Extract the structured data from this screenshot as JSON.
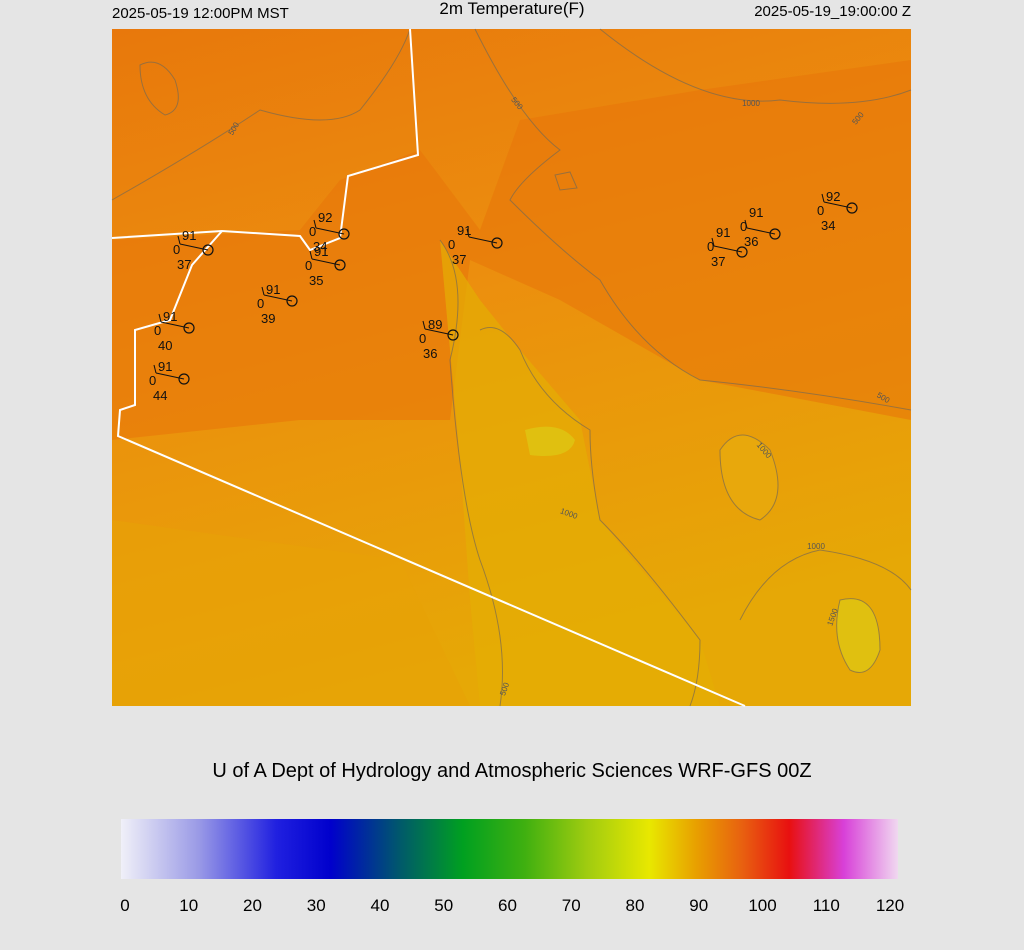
{
  "header": {
    "left": "2025-05-19 12:00PM MST",
    "title": "2m Temperature(F)",
    "right": "2025-05-19_19:00:00 Z"
  },
  "map": {
    "stations": [
      {
        "temp": 91,
        "cloud": 0,
        "dewpoint": 37
      },
      {
        "temp": 92,
        "cloud": 0,
        "dewpoint": 34
      },
      {
        "temp": 91,
        "cloud": 0,
        "dewpoint": 35
      },
      {
        "temp": 91,
        "cloud": 0,
        "dewpoint": 39
      },
      {
        "temp": 91,
        "cloud": 0,
        "dewpoint": 40
      },
      {
        "temp": 91,
        "cloud": 0,
        "dewpoint": 44
      },
      {
        "temp": 91,
        "cloud": 0,
        "dewpoint": 37
      },
      {
        "temp": 89,
        "cloud": 0,
        "dewpoint": 36
      },
      {
        "temp": 91,
        "cloud": 0,
        "dewpoint": 36
      },
      {
        "temp": 91,
        "cloud": 0,
        "dewpoint": 37
      },
      {
        "temp": 92,
        "cloud": 0,
        "dewpoint": 34
      }
    ],
    "contour_labels": [
      "500",
      "500",
      "1000",
      "500",
      "500",
      "1000",
      "1000",
      "1000",
      "1500",
      "500"
    ]
  },
  "footer": "U of A Dept of Hydrology and Atmospheric Sciences WRF-GFS 00Z",
  "colorbar": {
    "ticks": [
      0,
      10,
      20,
      30,
      40,
      50,
      60,
      70,
      80,
      90,
      100,
      110,
      120
    ]
  }
}
